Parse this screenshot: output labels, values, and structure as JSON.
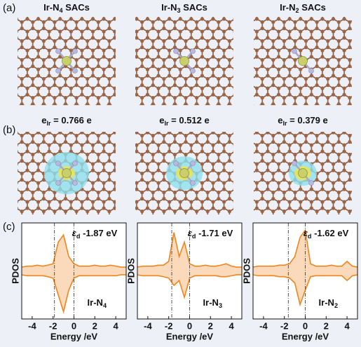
{
  "panel_labels": [
    "(a)",
    "(b)",
    "(c)"
  ],
  "structures": [
    {
      "title": [
        "Ir-N",
        "4",
        " SACs"
      ],
      "charge": [
        "e",
        "Ir",
        " = 0.766 e"
      ]
    },
    {
      "title": [
        "Ir-N",
        "3",
        " SACs"
      ],
      "charge": [
        "e",
        "Ir",
        " = 0.512 e"
      ]
    },
    {
      "title": [
        "Ir-N",
        "2",
        " SACs"
      ],
      "charge": [
        "e",
        "Ir",
        " = 0.379 e"
      ]
    }
  ],
  "chart_data": [
    {
      "type": "area",
      "xlabel": "Energy /eV",
      "ylabel": "PDOS",
      "xlim": [
        -5,
        5
      ],
      "ylim": [
        -1,
        1
      ],
      "xticks": [
        -4,
        -2,
        0,
        2,
        4
      ],
      "annotation": [
        "ε",
        "d",
        " -1.87 eV"
      ],
      "label": [
        "Ir-N",
        "4"
      ],
      "vlines": [
        -1.87,
        0
      ],
      "x": [
        -5,
        -4.5,
        -4,
        -3.5,
        -3,
        -2.5,
        -2,
        -1.5,
        -1,
        -0.5,
        0,
        0.5,
        1,
        1.5,
        2,
        2.5,
        3,
        3.5,
        4,
        4.5,
        5
      ],
      "series": [
        {
          "color": "#f0851e",
          "values": [
            0.08,
            0.1,
            0.1,
            0.12,
            0.1,
            0.12,
            0.15,
            0.6,
            0.75,
            0.3,
            0.15,
            0.1,
            0.1,
            0.1,
            0.12,
            0.1,
            0.1,
            0.12,
            0.1,
            0.08,
            0.08
          ]
        },
        {
          "color": "#f0851e",
          "values": [
            -0.08,
            -0.1,
            -0.1,
            -0.1,
            -0.1,
            -0.12,
            -0.15,
            -0.5,
            -0.85,
            -0.4,
            -0.15,
            -0.1,
            -0.1,
            -0.1,
            -0.1,
            -0.1,
            -0.1,
            -0.1,
            -0.1,
            -0.08,
            -0.08
          ]
        }
      ]
    },
    {
      "type": "area",
      "xlabel": "Energy /eV",
      "ylabel": "PDOS",
      "xlim": [
        -5,
        5
      ],
      "ylim": [
        -1,
        1
      ],
      "xticks": [
        -4,
        -2,
        0,
        2,
        4
      ],
      "annotation": [
        "ε",
        "d",
        " -1.71 eV"
      ],
      "label": [
        "Ir-N",
        "3"
      ],
      "vlines": [
        -1.71,
        0
      ],
      "x": [
        -5,
        -4.5,
        -4,
        -3.5,
        -3,
        -2.5,
        -2,
        -1.5,
        -1,
        -0.5,
        0,
        0.5,
        1,
        1.5,
        2,
        2.5,
        3,
        3.5,
        4,
        4.5,
        5
      ],
      "series": [
        {
          "color": "#f0851e",
          "values": [
            0.08,
            0.1,
            0.1,
            0.1,
            0.12,
            0.12,
            0.2,
            0.8,
            0.3,
            0.6,
            0.15,
            0.1,
            0.1,
            0.12,
            0.1,
            0.1,
            0.12,
            0.15,
            0.1,
            0.08,
            0.08
          ]
        },
        {
          "color": "#f0851e",
          "values": [
            -0.08,
            -0.1,
            -0.1,
            -0.1,
            -0.1,
            -0.12,
            -0.15,
            -0.3,
            -0.2,
            -0.55,
            -0.15,
            -0.1,
            -0.1,
            -0.1,
            -0.1,
            -0.1,
            -0.12,
            -0.12,
            -0.1,
            -0.08,
            -0.08
          ]
        }
      ]
    },
    {
      "type": "area",
      "xlabel": "Energy /eV",
      "ylabel": "PDOS",
      "xlim": [
        -5,
        5
      ],
      "ylim": [
        -1,
        1
      ],
      "xticks": [
        -4,
        -2,
        0,
        2,
        4
      ],
      "annotation": [
        "ε",
        "d",
        " -1.62 eV"
      ],
      "label": [
        "Ir-N",
        "2"
      ],
      "vlines": [
        -1.62,
        0
      ],
      "x": [
        -5,
        -4.5,
        -4,
        -3.5,
        -3,
        -2.5,
        -2,
        -1.5,
        -1,
        -0.5,
        0,
        0.5,
        1,
        1.5,
        2,
        2.5,
        3,
        3.5,
        4,
        4.5,
        5
      ],
      "series": [
        {
          "color": "#f0851e",
          "values": [
            0.08,
            0.1,
            0.1,
            0.1,
            0.1,
            0.12,
            0.12,
            0.15,
            0.3,
            0.7,
            0.85,
            0.15,
            0.1,
            0.1,
            0.1,
            0.12,
            0.1,
            0.1,
            0.2,
            0.1,
            0.08
          ]
        },
        {
          "color": "#f0851e",
          "values": [
            -0.08,
            -0.1,
            -0.1,
            -0.1,
            -0.1,
            -0.12,
            -0.12,
            -0.15,
            -0.25,
            -0.7,
            -0.4,
            -0.12,
            -0.1,
            -0.1,
            -0.1,
            -0.1,
            -0.1,
            -0.1,
            -0.2,
            -0.1,
            -0.08
          ]
        }
      ]
    }
  ]
}
